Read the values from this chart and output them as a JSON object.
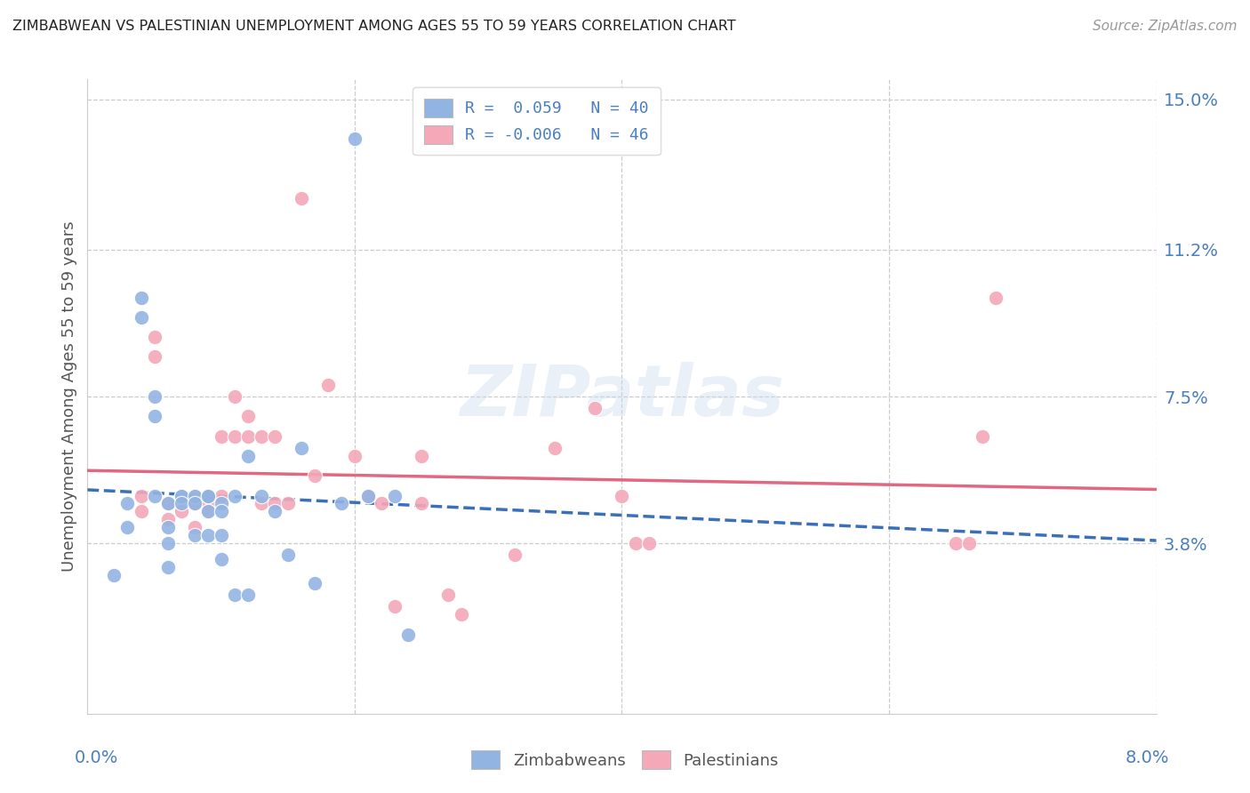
{
  "title": "ZIMBABWEAN VS PALESTINIAN UNEMPLOYMENT AMONG AGES 55 TO 59 YEARS CORRELATION CHART",
  "source": "Source: ZipAtlas.com",
  "ylabel": "Unemployment Among Ages 55 to 59 years",
  "xlim": [
    0.0,
    0.08
  ],
  "ylim": [
    -0.005,
    0.155
  ],
  "xticks": [
    0.0,
    0.02,
    0.04,
    0.06,
    0.08
  ],
  "ytick_right_values": [
    0.038,
    0.075,
    0.112,
    0.15
  ],
  "ytick_right_labels": [
    "3.8%",
    "7.5%",
    "11.2%",
    "15.0%"
  ],
  "legend_label1": "R =  0.059   N = 40",
  "legend_label2": "R = -0.006   N = 46",
  "legend_series1": "Zimbabweans",
  "legend_series2": "Palestinians",
  "color_zim": "#92b4e3",
  "color_pal": "#f4a8b8",
  "color_zim_line": "#3a6fba",
  "color_pal_line": "#e06880",
  "color_axis_label": "#4a7fc1",
  "color_grid": "#cccccc",
  "zim_x": [
    0.002,
    0.003,
    0.003,
    0.004,
    0.004,
    0.005,
    0.005,
    0.005,
    0.006,
    0.006,
    0.006,
    0.006,
    0.007,
    0.007,
    0.007,
    0.008,
    0.008,
    0.008,
    0.009,
    0.009,
    0.009,
    0.009,
    0.01,
    0.01,
    0.01,
    0.01,
    0.011,
    0.011,
    0.012,
    0.012,
    0.013,
    0.014,
    0.015,
    0.016,
    0.017,
    0.019,
    0.02,
    0.021,
    0.023,
    0.024
  ],
  "zim_y": [
    0.03,
    0.048,
    0.042,
    0.1,
    0.095,
    0.075,
    0.07,
    0.05,
    0.048,
    0.042,
    0.038,
    0.032,
    0.05,
    0.05,
    0.048,
    0.05,
    0.048,
    0.04,
    0.05,
    0.05,
    0.046,
    0.04,
    0.048,
    0.046,
    0.04,
    0.034,
    0.05,
    0.025,
    0.06,
    0.025,
    0.05,
    0.046,
    0.035,
    0.062,
    0.028,
    0.048,
    0.14,
    0.05,
    0.05,
    0.015
  ],
  "pal_x": [
    0.004,
    0.004,
    0.005,
    0.005,
    0.006,
    0.006,
    0.007,
    0.007,
    0.008,
    0.008,
    0.008,
    0.009,
    0.009,
    0.009,
    0.01,
    0.01,
    0.011,
    0.011,
    0.012,
    0.012,
    0.013,
    0.013,
    0.014,
    0.014,
    0.015,
    0.016,
    0.017,
    0.018,
    0.02,
    0.021,
    0.022,
    0.023,
    0.025,
    0.025,
    0.027,
    0.028,
    0.032,
    0.035,
    0.038,
    0.04,
    0.041,
    0.042,
    0.065,
    0.066,
    0.067,
    0.068
  ],
  "pal_y": [
    0.05,
    0.046,
    0.09,
    0.085,
    0.048,
    0.044,
    0.05,
    0.046,
    0.05,
    0.048,
    0.042,
    0.05,
    0.048,
    0.046,
    0.065,
    0.05,
    0.075,
    0.065,
    0.07,
    0.065,
    0.065,
    0.048,
    0.065,
    0.048,
    0.048,
    0.125,
    0.055,
    0.078,
    0.06,
    0.05,
    0.048,
    0.022,
    0.06,
    0.048,
    0.025,
    0.02,
    0.035,
    0.062,
    0.072,
    0.05,
    0.038,
    0.038,
    0.038,
    0.038,
    0.065,
    0.1
  ],
  "watermark": "ZIPatlas",
  "background_color": "#ffffff"
}
